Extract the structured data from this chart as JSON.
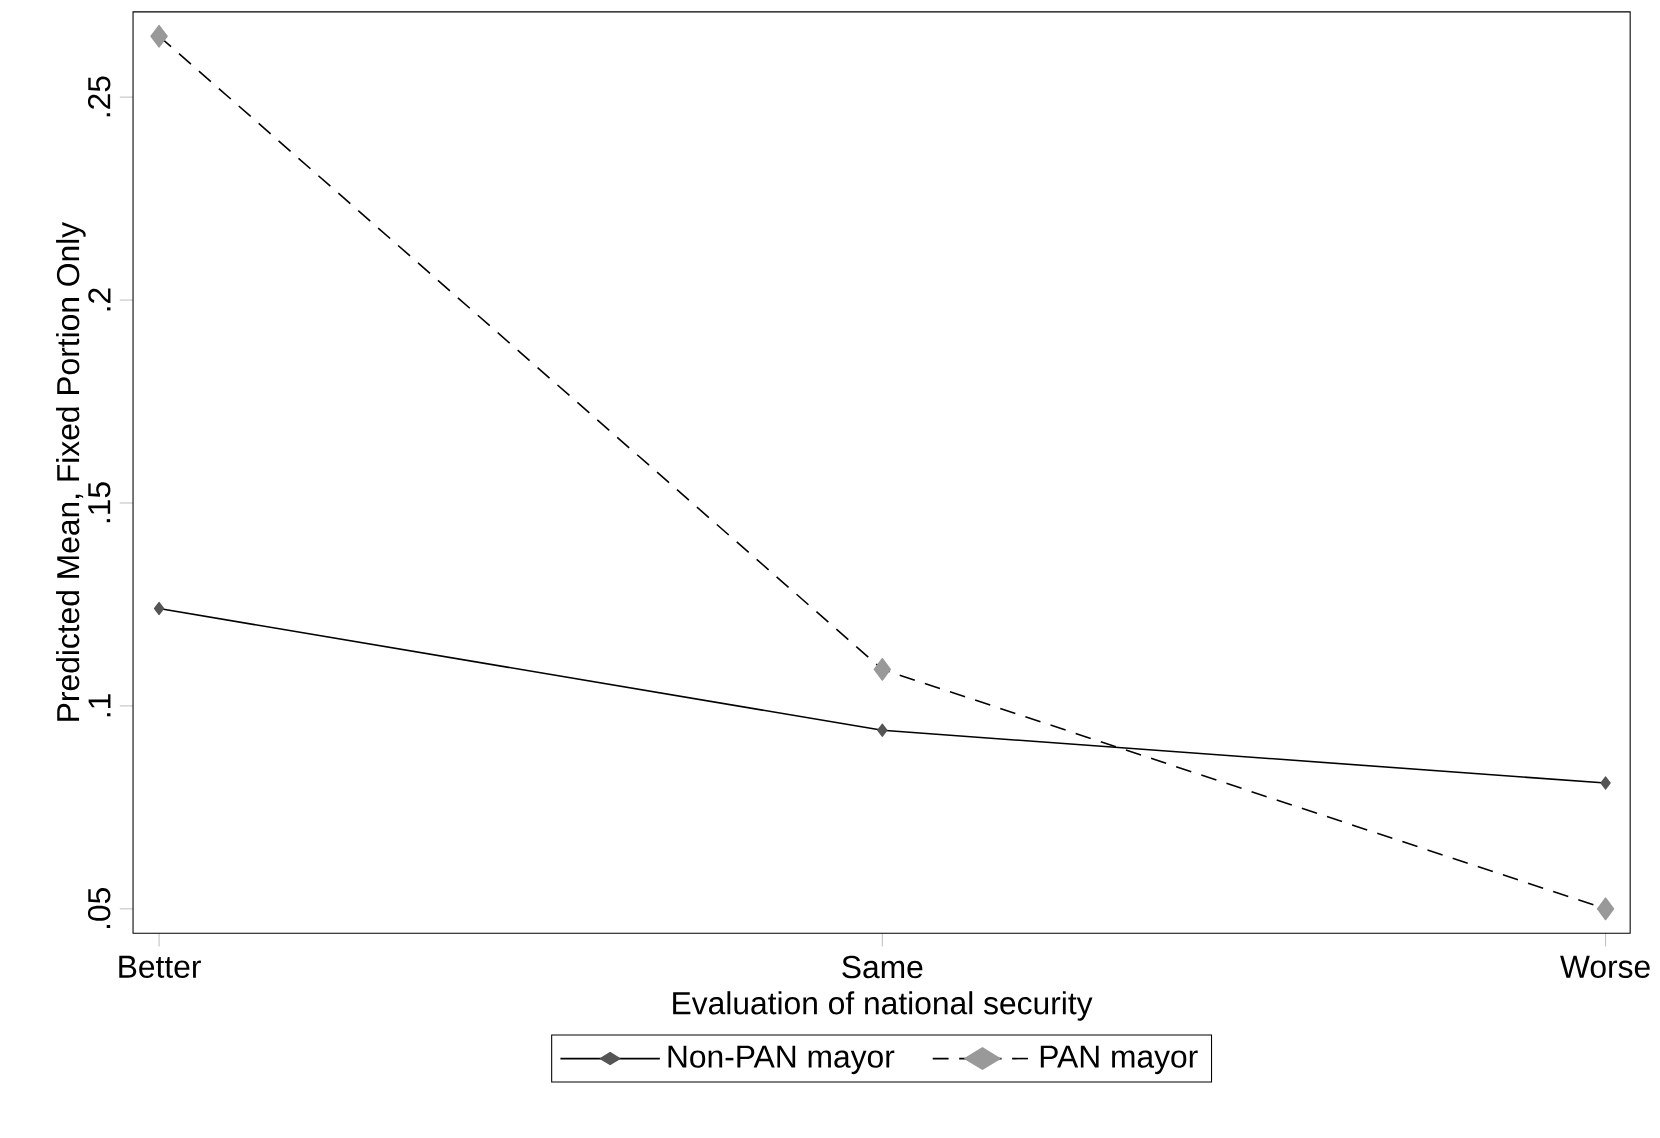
{
  "chart_data": {
    "type": "line",
    "xlabel": "Evaluation of national security",
    "ylabel": "Predicted Mean, Fixed Portion Only",
    "categories": [
      "Better",
      "Same",
      "Worse"
    ],
    "series": [
      {
        "name": "Non-PAN mayor",
        "color": "#555555",
        "values": [
          0.124,
          0.094,
          0.081
        ],
        "line_style": "solid"
      },
      {
        "name": "PAN mayor",
        "color": "#999999",
        "values": [
          0.265,
          0.109,
          0.05
        ],
        "line_style": "dashed"
      }
    ],
    "ylim": [
      0.044,
      0.271
    ],
    "yticks": [
      {
        "value": 0.05,
        "label": ".05"
      },
      {
        "value": 0.1,
        "label": ".1"
      },
      {
        "value": 0.15,
        "label": ".15"
      },
      {
        "value": 0.2,
        "label": ".2"
      },
      {
        "value": 0.25,
        "label": ".25"
      }
    ],
    "marker": "diamond",
    "grid": false,
    "legend": "bottom"
  }
}
